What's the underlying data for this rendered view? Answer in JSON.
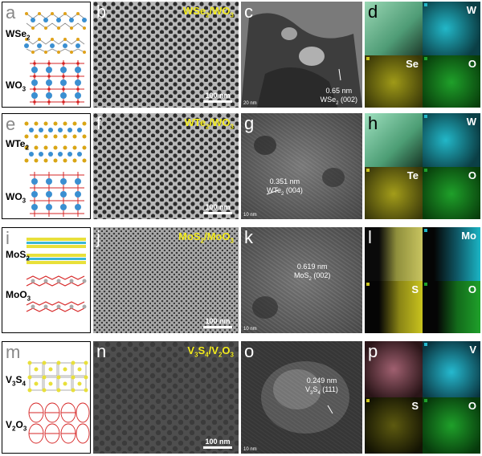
{
  "rows": [
    {
      "schematic": {
        "letter": "a",
        "top_label": "WSe",
        "top_sub": "2",
        "bottom_label": "WO",
        "bottom_sub": "3",
        "type": "wse2"
      },
      "sem": {
        "letter": "b",
        "title_a": "WSe",
        "title_sub1": "2",
        "title_b": "/WO",
        "title_sub2": "3",
        "scale": "100 nm",
        "texture": "pores"
      },
      "tem": {
        "letter": "c",
        "line1": "0.65 nm",
        "line2_a": "WSe",
        "line2_sub": "2",
        "line2_b": " (002)",
        "scale": "20 nm"
      },
      "map": {
        "letter": "d",
        "elements": [
          "W",
          "Se",
          "O"
        ]
      }
    },
    {
      "schematic": {
        "letter": "e",
        "top_label": "WTe",
        "top_sub": "2",
        "bottom_label": "WO",
        "bottom_sub": "3",
        "type": "wte2"
      },
      "sem": {
        "letter": "f",
        "title_a": "WTe",
        "title_sub1": "2",
        "title_b": "/WO",
        "title_sub2": "3",
        "scale": "100 nm",
        "texture": "pores"
      },
      "tem": {
        "letter": "g",
        "line1": "0.351 nm",
        "line2_a": "WTe",
        "line2_sub": "2",
        "line2_b": " (004)",
        "scale": "10 nm"
      },
      "map": {
        "letter": "h",
        "elements": [
          "W",
          "Te",
          "O"
        ]
      }
    },
    {
      "schematic": {
        "letter": "i",
        "top_label": "MoS",
        "top_sub": "2",
        "bottom_label": "MoO",
        "bottom_sub": "3",
        "type": "mos2"
      },
      "sem": {
        "letter": "j",
        "title_a": "MoS",
        "title_sub1": "2",
        "title_b": "/MoO",
        "title_sub2": "3",
        "scale": "100 nm",
        "texture": "fine"
      },
      "tem": {
        "letter": "k",
        "line1": "0.619 nm",
        "line2_a": "MoS",
        "line2_sub": "2",
        "line2_b": " (002)",
        "scale": "10 nm"
      },
      "map": {
        "letter": "l",
        "elements": [
          "Mo",
          "S",
          "O"
        ]
      }
    },
    {
      "schematic": {
        "letter": "m",
        "top_label": "V",
        "top_sub": "3",
        "top_label2": "S",
        "top_sub2": "4",
        "bottom_label": "V",
        "bottom_sub": "2",
        "bottom_label2": "O",
        "bottom_sub2": "3",
        "type": "v3s4"
      },
      "sem": {
        "letter": "n",
        "title_a": "V",
        "title_sub1": "3",
        "title_b": "S",
        "title_sub2": "4",
        "title_c": "/V",
        "title_sub3": "2",
        "title_d": "O",
        "title_sub4": "3",
        "scale": "100 nm",
        "texture": "smooth"
      },
      "tem": {
        "letter": "o",
        "line1": "0.249 nm",
        "line2_a": "V",
        "line2_sub": "3",
        "line2_b": "S",
        "line2_sub2": "4",
        "line2_c": " (111)",
        "scale": "10 nm"
      },
      "map": {
        "letter": "p",
        "elements": [
          "V",
          "S",
          "O"
        ]
      }
    }
  ],
  "colors": {
    "yellow_title": "#f4ec1c",
    "w_map": "#22b7c8",
    "se_map": "#c9c31e",
    "o_map": "#1fa02a",
    "mo_map": "#1bb5c5",
    "v_map": "#25b9cf",
    "tungsten": "#3a8fd1",
    "oxygen": "#d62424",
    "selenium": "#e0a21a",
    "tellurium": "#d9a514",
    "sulfur": "#e8e03a",
    "vanadium": "#9a9a9a"
  }
}
